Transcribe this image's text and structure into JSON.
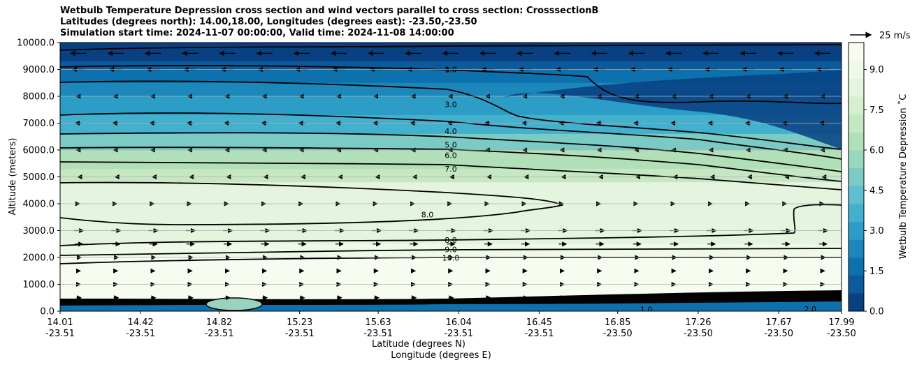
{
  "chart_data": {
    "type": "contour-cross-section",
    "title_lines": [
      "Wetbulb Temperature Depression cross section and wind vectors parallel to cross section: CrosssectionB",
      "Latitudes (degrees north): 14.00,18.00, Longitudes (degrees east): -23.50,-23.50",
      "Simulation start time: 2024-11-07 00:00:00, Valid time: 2024-11-08 14:00:00"
    ],
    "ylabel": "Altitude (meters)",
    "xlabel_lat": "Latitude (degrees N)",
    "xlabel_lon": "Longitude (degrees E)",
    "ylim": [
      0,
      10000
    ],
    "yticks": [
      "0.0",
      "1000.0",
      "2000.0",
      "3000.0",
      "4000.0",
      "5000.0",
      "6000.0",
      "7000.0",
      "8000.0",
      "9000.0",
      "10000.0"
    ],
    "xticks": [
      {
        "lat": "14.01",
        "lon": "-23.51"
      },
      {
        "lat": "14.42",
        "lon": "-23.51"
      },
      {
        "lat": "14.82",
        "lon": "-23.51"
      },
      {
        "lat": "15.23",
        "lon": "-23.51"
      },
      {
        "lat": "15.63",
        "lon": "-23.51"
      },
      {
        "lat": "16.04",
        "lon": "-23.51"
      },
      {
        "lat": "16.45",
        "lon": "-23.51"
      },
      {
        "lat": "16.85",
        "lon": "-23.50"
      },
      {
        "lat": "17.26",
        "lon": "-23.50"
      },
      {
        "lat": "17.67",
        "lon": "-23.50"
      },
      {
        "lat": "17.99",
        "lon": "-23.50"
      }
    ],
    "colorbar": {
      "label": "Wetbulb Temperature Depression ˚C",
      "range": [
        0,
        10
      ],
      "ticks": [
        "0.0",
        "1.5",
        "3.0",
        "4.5",
        "6.0",
        "7.5",
        "9.0"
      ],
      "colors": [
        "#084081",
        "#0a5a9c",
        "#0d71ad",
        "#1c87bb",
        "#2c9dc6",
        "#43b0ce",
        "#5dbfcf",
        "#7bcbc4",
        "#98d6bd",
        "#b1e0b8",
        "#c5e8c2",
        "#d6efcf",
        "#e4f4de",
        "#f0f9e9",
        "#f7fcf0"
      ]
    },
    "quiver_key": "25 m/s",
    "depression_bands": [
      {
        "alt": 10000,
        "value": 0.6
      },
      {
        "alt": 9300,
        "value": 0.8
      },
      {
        "alt": 9000,
        "value": 1.8
      },
      {
        "alt": 8500,
        "value": 2.6
      },
      {
        "alt": 8000,
        "value": 3.2
      },
      {
        "alt": 7300,
        "value": 3.8
      },
      {
        "alt": 6600,
        "value": 4.8
      },
      {
        "alt": 6000,
        "value": 6.2
      },
      {
        "alt": 5300,
        "value": 7.2
      },
      {
        "alt": 4800,
        "value": 8.0
      },
      {
        "alt": 3600,
        "value": 8.3
      },
      {
        "alt": 2500,
        "value": 8.8
      },
      {
        "alt": 2000,
        "value": 10.0
      },
      {
        "alt": 600,
        "value": 10.0
      },
      {
        "alt": 400,
        "value": 1.5
      }
    ],
    "contour_labels": [
      {
        "text": "1.0",
        "x_frac": 0.5,
        "alt": 9000
      },
      {
        "text": "3.0",
        "x_frac": 0.5,
        "alt": 7700
      },
      {
        "text": "4.0",
        "x_frac": 0.5,
        "alt": 6700
      },
      {
        "text": "5.0",
        "x_frac": 0.5,
        "alt": 6200
      },
      {
        "text": "6.0",
        "x_frac": 0.5,
        "alt": 5800
      },
      {
        "text": "7.0",
        "x_frac": 0.5,
        "alt": 5300
      },
      {
        "text": "8.0",
        "x_frac": 0.47,
        "alt": 3600
      },
      {
        "text": "8.0",
        "x_frac": 0.5,
        "alt": 2650
      },
      {
        "text": "9.0",
        "x_frac": 0.5,
        "alt": 2300
      },
      {
        "text": "10.0",
        "x_frac": 0.5,
        "alt": 1990
      },
      {
        "text": "1.0",
        "x_frac": 0.75,
        "alt": 60
      },
      {
        "text": "2.0",
        "x_frac": 0.96,
        "alt": 80
      }
    ],
    "wind_rows": [
      {
        "alt": 9600,
        "u": -10
      },
      {
        "alt": 9000,
        "u": -8
      },
      {
        "alt": 8000,
        "u": -3
      },
      {
        "alt": 7000,
        "u": -4
      },
      {
        "alt": 6000,
        "u": -3
      },
      {
        "alt": 5000,
        "u": -1
      },
      {
        "alt": 4000,
        "u": 1
      },
      {
        "alt": 3000,
        "u": 6
      },
      {
        "alt": 2500,
        "u": 5
      },
      {
        "alt": 2000,
        "u": 3
      },
      {
        "alt": 1500,
        "u": 2
      },
      {
        "alt": 1000,
        "u": 2
      },
      {
        "alt": 500,
        "u": 3
      }
    ]
  }
}
